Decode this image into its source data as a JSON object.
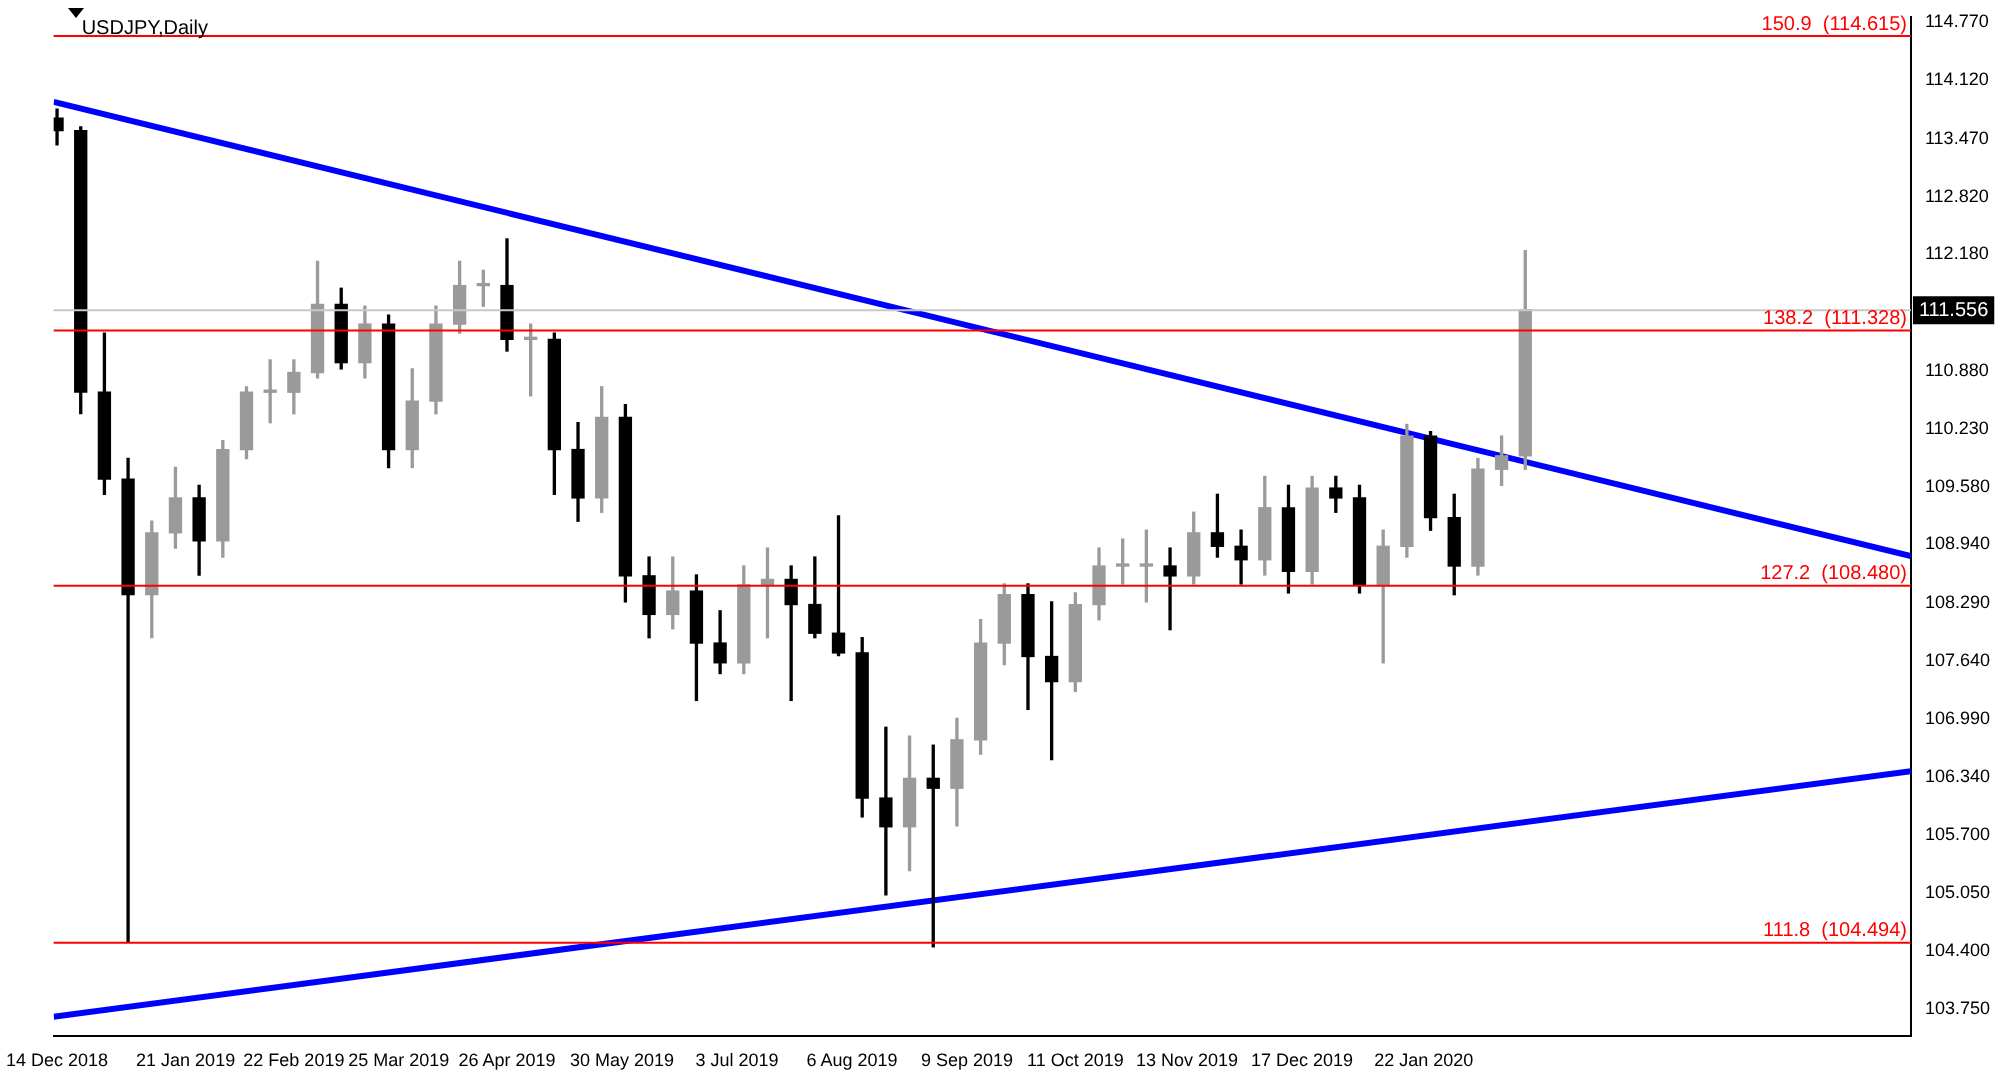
{
  "chart_data": {
    "type": "candlestick",
    "title": "USDJPY,Daily",
    "x": [
      "2018-12-14",
      "2018-12-21",
      "2018-12-28",
      "2019-01-04",
      "2019-01-11",
      "2019-01-18",
      "2019-01-25",
      "2019-02-01",
      "2019-02-08",
      "2019-02-15",
      "2019-02-22",
      "2019-03-01",
      "2019-03-08",
      "2019-03-15",
      "2019-03-22",
      "2019-03-29",
      "2019-04-05",
      "2019-04-12",
      "2019-04-19",
      "2019-04-26",
      "2019-05-03",
      "2019-05-10",
      "2019-05-17",
      "2019-05-24",
      "2019-05-31",
      "2019-06-07",
      "2019-06-14",
      "2019-06-21",
      "2019-06-28",
      "2019-07-05",
      "2019-07-12",
      "2019-07-19",
      "2019-07-26",
      "2019-08-02",
      "2019-08-09",
      "2019-08-16",
      "2019-08-23",
      "2019-08-30",
      "2019-09-06",
      "2019-09-13",
      "2019-09-20",
      "2019-09-27",
      "2019-10-04",
      "2019-10-11",
      "2019-10-18",
      "2019-10-25",
      "2019-11-01",
      "2019-11-08",
      "2019-11-15",
      "2019-11-22",
      "2019-11-29",
      "2019-12-06",
      "2019-12-13",
      "2019-12-20",
      "2019-12-27",
      "2020-01-03",
      "2020-01-10",
      "2020-01-17",
      "2020-01-24",
      "2020-01-31",
      "2020-02-07",
      "2020-02-14",
      "2020-02-21"
    ],
    "ohlc": [
      [
        113.7,
        113.8,
        113.4,
        113.56
      ],
      [
        113.56,
        113.6,
        110.4,
        110.64
      ],
      [
        110.64,
        111.3,
        109.5,
        109.67
      ],
      [
        109.67,
        109.9,
        104.5,
        108.38
      ],
      [
        108.38,
        109.2,
        107.9,
        109.07
      ],
      [
        109.07,
        109.8,
        108.9,
        109.46
      ],
      [
        109.46,
        109.6,
        108.6,
        108.98
      ],
      [
        108.98,
        110.1,
        108.8,
        110.0
      ],
      [
        110.0,
        110.7,
        109.9,
        110.64
      ],
      [
        110.64,
        111.0,
        110.3,
        110.64
      ],
      [
        110.64,
        111.0,
        110.4,
        110.86
      ],
      [
        110.86,
        112.1,
        110.8,
        111.62
      ],
      [
        111.62,
        111.8,
        110.9,
        110.97
      ],
      [
        110.97,
        111.6,
        110.8,
        111.4
      ],
      [
        111.4,
        111.5,
        109.8,
        110.0
      ],
      [
        110.0,
        110.9,
        109.8,
        110.54
      ],
      [
        110.54,
        111.6,
        110.4,
        111.4
      ],
      [
        111.4,
        112.1,
        111.3,
        111.83
      ],
      [
        111.83,
        112.0,
        111.6,
        111.83
      ],
      [
        111.83,
        112.35,
        111.1,
        111.23
      ],
      [
        111.23,
        111.4,
        110.6,
        111.23
      ],
      [
        111.23,
        111.3,
        109.5,
        110.0
      ],
      [
        110.0,
        110.3,
        109.2,
        109.46
      ],
      [
        109.46,
        110.7,
        109.3,
        110.36
      ],
      [
        110.36,
        110.5,
        108.3,
        108.59
      ],
      [
        108.59,
        108.8,
        107.9,
        108.16
      ],
      [
        108.16,
        108.8,
        108.0,
        108.42
      ],
      [
        108.42,
        108.6,
        107.2,
        107.84
      ],
      [
        107.84,
        108.2,
        107.5,
        107.62
      ],
      [
        107.62,
        108.7,
        107.5,
        108.49
      ],
      [
        108.49,
        108.9,
        107.9,
        108.55
      ],
      [
        108.55,
        108.7,
        107.2,
        108.27
      ],
      [
        108.27,
        108.8,
        107.9,
        107.95
      ],
      [
        107.95,
        109.26,
        107.7,
        107.73
      ],
      [
        107.73,
        107.9,
        105.9,
        106.11
      ],
      [
        106.11,
        106.9,
        105.03,
        105.79
      ],
      [
        105.79,
        106.8,
        105.3,
        106.33
      ],
      [
        106.33,
        106.7,
        104.45,
        106.22
      ],
      [
        106.22,
        107.0,
        105.8,
        106.76
      ],
      [
        106.76,
        108.1,
        106.6,
        107.84
      ],
      [
        107.84,
        108.5,
        107.6,
        108.38
      ],
      [
        108.38,
        108.5,
        107.1,
        107.69
      ],
      [
        107.69,
        108.3,
        106.54,
        107.41
      ],
      [
        107.41,
        108.4,
        107.3,
        108.27
      ],
      [
        108.27,
        108.9,
        108.1,
        108.7
      ],
      [
        108.7,
        109.0,
        108.5,
        108.7
      ],
      [
        108.7,
        109.1,
        108.3,
        108.7
      ],
      [
        108.7,
        108.9,
        107.99,
        108.59
      ],
      [
        108.59,
        109.3,
        108.5,
        109.07
      ],
      [
        109.07,
        109.5,
        108.8,
        108.92
      ],
      [
        108.92,
        109.1,
        108.5,
        108.77
      ],
      [
        108.77,
        109.7,
        108.6,
        109.35
      ],
      [
        109.35,
        109.6,
        108.4,
        108.64
      ],
      [
        108.64,
        109.7,
        108.5,
        109.57
      ],
      [
        109.57,
        109.7,
        109.3,
        109.46
      ],
      [
        109.46,
        109.6,
        108.4,
        108.49
      ],
      [
        108.49,
        109.1,
        107.62,
        108.92
      ],
      [
        108.92,
        110.28,
        108.8,
        110.15
      ],
      [
        110.15,
        110.2,
        109.1,
        109.24
      ],
      [
        109.24,
        109.5,
        108.38,
        108.7
      ],
      [
        108.7,
        109.9,
        108.6,
        109.78
      ],
      [
        109.78,
        110.15,
        109.6,
        109.93
      ],
      [
        109.93,
        112.22,
        109.78,
        111.56
      ]
    ],
    "series": [
      {
        "type": "line",
        "color": "#0000ff",
        "x": [
          "2018-12-13",
          "2020-06-14"
        ],
        "values": [
          113.88,
          108.81
        ]
      },
      {
        "type": "line",
        "color": "#0000ff",
        "x": [
          "2018-12-13",
          "2020-06-14"
        ],
        "values": [
          103.67,
          106.41
        ]
      }
    ],
    "ref_lines": [
      {
        "axis": "y",
        "value": 114.615,
        "label": "150.9  (114.615)",
        "color": "#ff0000"
      },
      {
        "axis": "y",
        "value": 111.556,
        "label": "111.556",
        "color": "#c8c8c8"
      },
      {
        "axis": "y",
        "value": 111.328,
        "label": "138.2  (111.328)",
        "color": "#ff0000"
      },
      {
        "axis": "y",
        "value": 108.48,
        "label": "127.2  (108.480)",
        "color": "#ff0000"
      },
      {
        "axis": "y",
        "value": 104.494,
        "label": "111.8  (104.494)",
        "color": "#ff0000"
      }
    ],
    "xlim": [
      "2018-12-13",
      "2020-06-14"
    ],
    "xticks": [
      {
        "value": "2018-12-14",
        "label": "14 Dec 2018"
      },
      {
        "value": "2019-01-21",
        "label": "21 Jan 2019"
      },
      {
        "value": "2019-02-22",
        "label": "22 Feb 2019"
      },
      {
        "value": "2019-03-25",
        "label": "25 Mar 2019"
      },
      {
        "value": "2019-04-26",
        "label": "26 Apr 2019"
      },
      {
        "value": "2019-05-30",
        "label": "30 May 2019"
      },
      {
        "value": "2019-07-03",
        "label": "3 Jul 2019"
      },
      {
        "value": "2019-08-06",
        "label": "6 Aug 2019"
      },
      {
        "value": "2019-09-09",
        "label": "9 Sep 2019"
      },
      {
        "value": "2019-10-11",
        "label": "11 Oct 2019"
      },
      {
        "value": "2019-11-13",
        "label": "13 Nov 2019"
      },
      {
        "value": "2019-12-17",
        "label": "17 Dec 2019"
      },
      {
        "value": "2020-01-22",
        "label": "22 Jan 2020"
      }
    ],
    "ylim": [
      103.45,
      114.83
    ],
    "yticks": [
      {
        "value": 114.77,
        "label": "114.770"
      },
      {
        "value": 114.12,
        "label": "114.120"
      },
      {
        "value": 113.47,
        "label": "113.470"
      },
      {
        "value": 112.82,
        "label": "112.820"
      },
      {
        "value": 112.18,
        "label": "112.180"
      },
      {
        "value": 110.88,
        "label": "110.880"
      },
      {
        "value": 110.23,
        "label": "110.230"
      },
      {
        "value": 109.58,
        "label": "109.580"
      },
      {
        "value": 108.94,
        "label": "108.940"
      },
      {
        "value": 108.29,
        "label": "108.290"
      },
      {
        "value": 107.64,
        "label": "107.640"
      },
      {
        "value": 106.99,
        "label": "106.990"
      },
      {
        "value": 106.34,
        "label": "106.340"
      },
      {
        "value": 105.7,
        "label": "105.700"
      },
      {
        "value": 105.05,
        "label": "105.050"
      },
      {
        "value": 104.4,
        "label": "104.400"
      },
      {
        "value": 103.75,
        "label": "103.750"
      }
    ],
    "grid": false,
    "legend": false
  }
}
